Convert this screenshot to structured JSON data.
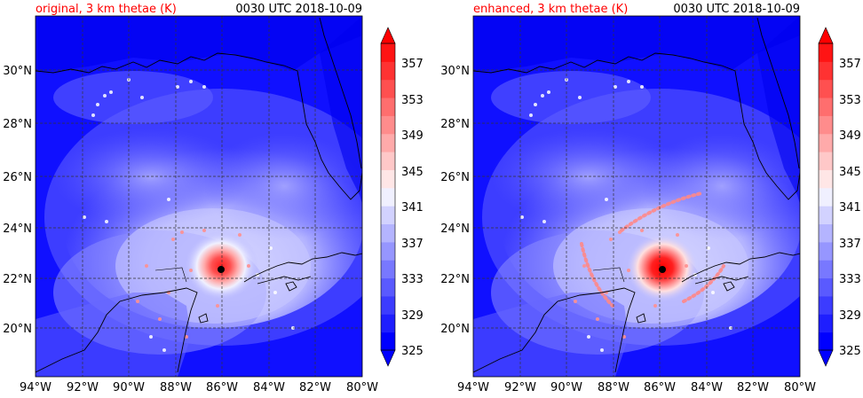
{
  "panels": [
    {
      "title_left": "original, 3 km thetae (K)",
      "title_right": "0030 UTC 2018-10-09"
    },
    {
      "title_left": "enhanced, 3 km thetae (K)",
      "title_right": "0030 UTC 2018-10-09"
    }
  ],
  "chart_data": {
    "type": "heatmap",
    "x_ticks": [
      "94°W",
      "92°W",
      "90°W",
      "88°W",
      "86°W",
      "84°W",
      "82°W",
      "80°W"
    ],
    "y_ticks": [
      "30°N",
      "28°N",
      "26°N",
      "24°N",
      "22°N",
      "20°N"
    ],
    "x_values": [
      -94,
      -92,
      -90,
      -88,
      -86,
      -84,
      -82,
      -80
    ],
    "y_values": [
      30,
      28,
      26,
      24,
      22,
      20
    ],
    "xlim": [
      -94,
      -80
    ],
    "ylim": [
      18.2,
      32
    ],
    "gridlines": true,
    "storm_center": {
      "lon": -86.0,
      "lat": 22.3
    },
    "colorbar": {
      "tick_labels": [
        "325",
        "329",
        "333",
        "337",
        "341",
        "345",
        "349",
        "353",
        "357"
      ],
      "levels": [
        325,
        327,
        329,
        331,
        333,
        335,
        337,
        339,
        341,
        343,
        345,
        347,
        349,
        351,
        353,
        355,
        357,
        359
      ],
      "extend": "both",
      "colors": [
        "#0000ff",
        "#1e1eff",
        "#3c3cff",
        "#5a5aff",
        "#7878ff",
        "#9696ff",
        "#b4b4ff",
        "#d2d2ff",
        "#f0f0ff",
        "#ffe6e6",
        "#ffc8c8",
        "#ffaaaa",
        "#ff8c8c",
        "#ff6e6e",
        "#ff5050",
        "#ff3232",
        "#ff1414"
      ],
      "extend_low": "#0000ff",
      "extend_high": "#ff0000"
    }
  },
  "colors": {
    "title_left": "#ff0000",
    "title_right": "#000000",
    "coast": "#000000",
    "grid": "#333333"
  }
}
